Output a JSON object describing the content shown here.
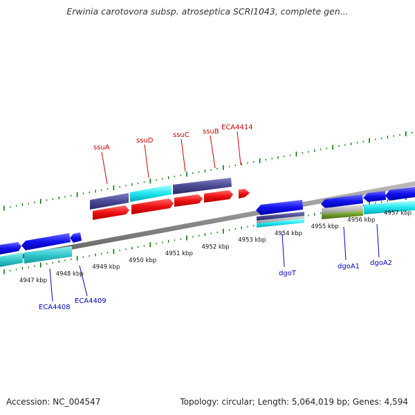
{
  "title": "Erwinia carotovora subsp. atroseptica SCRI1043, complete gen...",
  "footer": {
    "accession": "Accession: NC_004547",
    "summary": "Topology: circular; Length: 5,064,019 bp; Genes: 4,594"
  },
  "colors": {
    "forward_label": "#cc0000",
    "reverse_label": "#0000bb",
    "tick": "#007700",
    "backbone": "#888888"
  },
  "scale": {
    "labels": [
      "4947 kbp",
      "4948 kbp",
      "4949 kbp",
      "4950 kbp",
      "4951 kbp",
      "4952 kbp",
      "4953 kbp",
      "4954 kbp",
      "4955 kbp",
      "4956 kbp",
      "4957 kbp"
    ]
  },
  "forward_gene_labels": [
    "ssuA",
    "ssuD",
    "ssuC",
    "ssuB",
    "ECA4414"
  ],
  "reverse_gene_labels": [
    "ECA4408",
    "ECA4409",
    "dgoT",
    "dgoA1",
    "dgoA2"
  ]
}
